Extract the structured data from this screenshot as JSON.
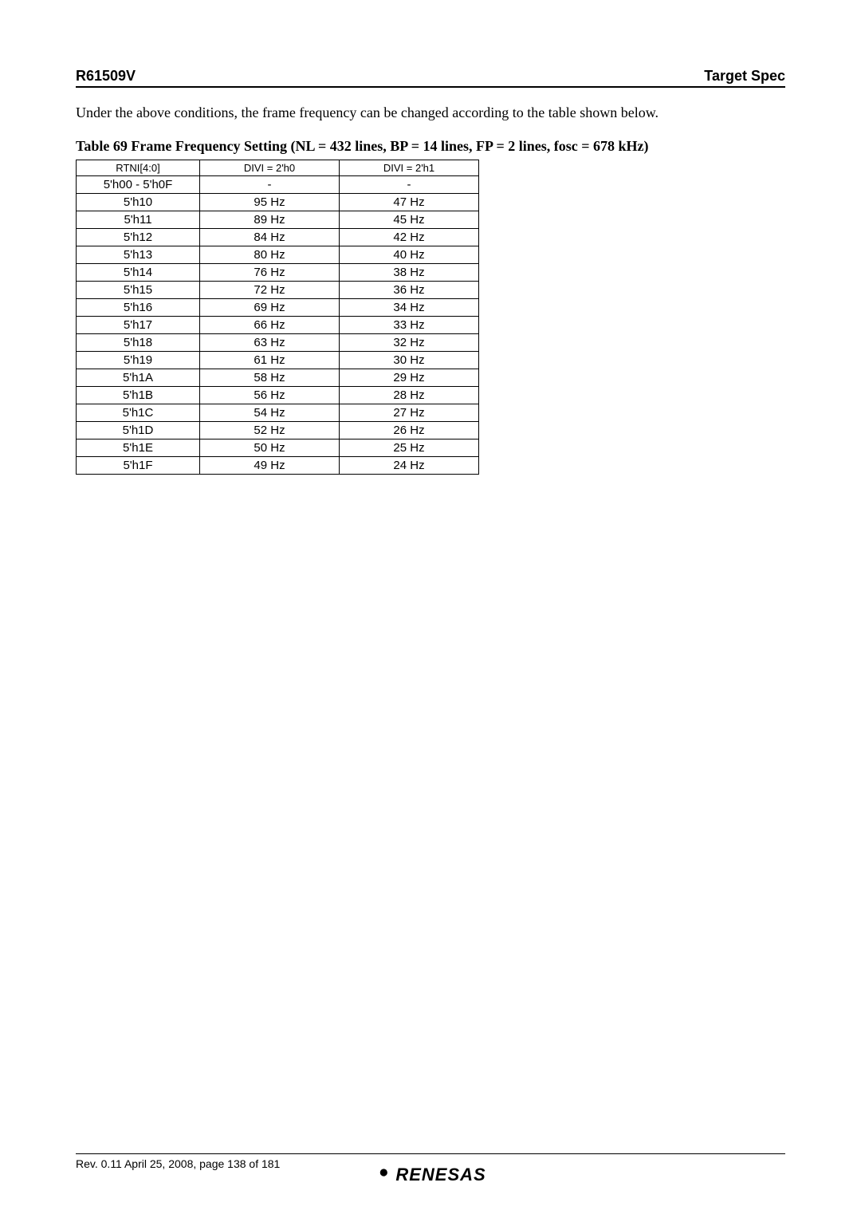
{
  "header": {
    "product": "R61509V",
    "spec": "Target Spec"
  },
  "intro": "Under the above conditions, the frame frequency can be changed according to the table shown below.",
  "table": {
    "caption": "Table 69 Frame Frequency Setting (NL = 432 lines, BP = 14 lines, FP = 2 lines, fosc = 678 kHz)",
    "col_widths": [
      "155px",
      "175px",
      "175px"
    ],
    "header_fontsize": 13,
    "body_fontsize": 15,
    "columns": [
      "RTNI[4:0]",
      "DIVI = 2'h0",
      "DIVI = 2'h1"
    ],
    "rows": [
      [
        "5'h00 - 5'h0F",
        "-",
        "-"
      ],
      [
        "5'h10",
        "95 Hz",
        "47 Hz"
      ],
      [
        "5'h11",
        "89 Hz",
        "45 Hz"
      ],
      [
        "5'h12",
        "84 Hz",
        "42 Hz"
      ],
      [
        "5'h13",
        "80 Hz",
        "40 Hz"
      ],
      [
        "5'h14",
        "76 Hz",
        "38 Hz"
      ],
      [
        "5'h15",
        "72 Hz",
        "36 Hz"
      ],
      [
        "5'h16",
        "69 Hz",
        "34 Hz"
      ],
      [
        "5'h17",
        "66 Hz",
        "33 Hz"
      ],
      [
        "5'h18",
        "63 Hz",
        "32 Hz"
      ],
      [
        "5'h19",
        "61 Hz",
        "30 Hz"
      ],
      [
        "5'h1A",
        "58 Hz",
        "29 Hz"
      ],
      [
        "5'h1B",
        "56 Hz",
        "28 Hz"
      ],
      [
        "5'h1C",
        "54 Hz",
        "27 Hz"
      ],
      [
        "5'h1D",
        "52 Hz",
        "26 Hz"
      ],
      [
        "5'h1E",
        "50 Hz",
        "25 Hz"
      ],
      [
        "5'h1F",
        "49 Hz",
        "24 Hz"
      ]
    ]
  },
  "footer": {
    "revision": "Rev. 0.11 April 25, 2008, page 138 of 181",
    "logo_text": "RENESAS"
  },
  "colors": {
    "text": "#000000",
    "background": "#ffffff",
    "border": "#000000"
  }
}
